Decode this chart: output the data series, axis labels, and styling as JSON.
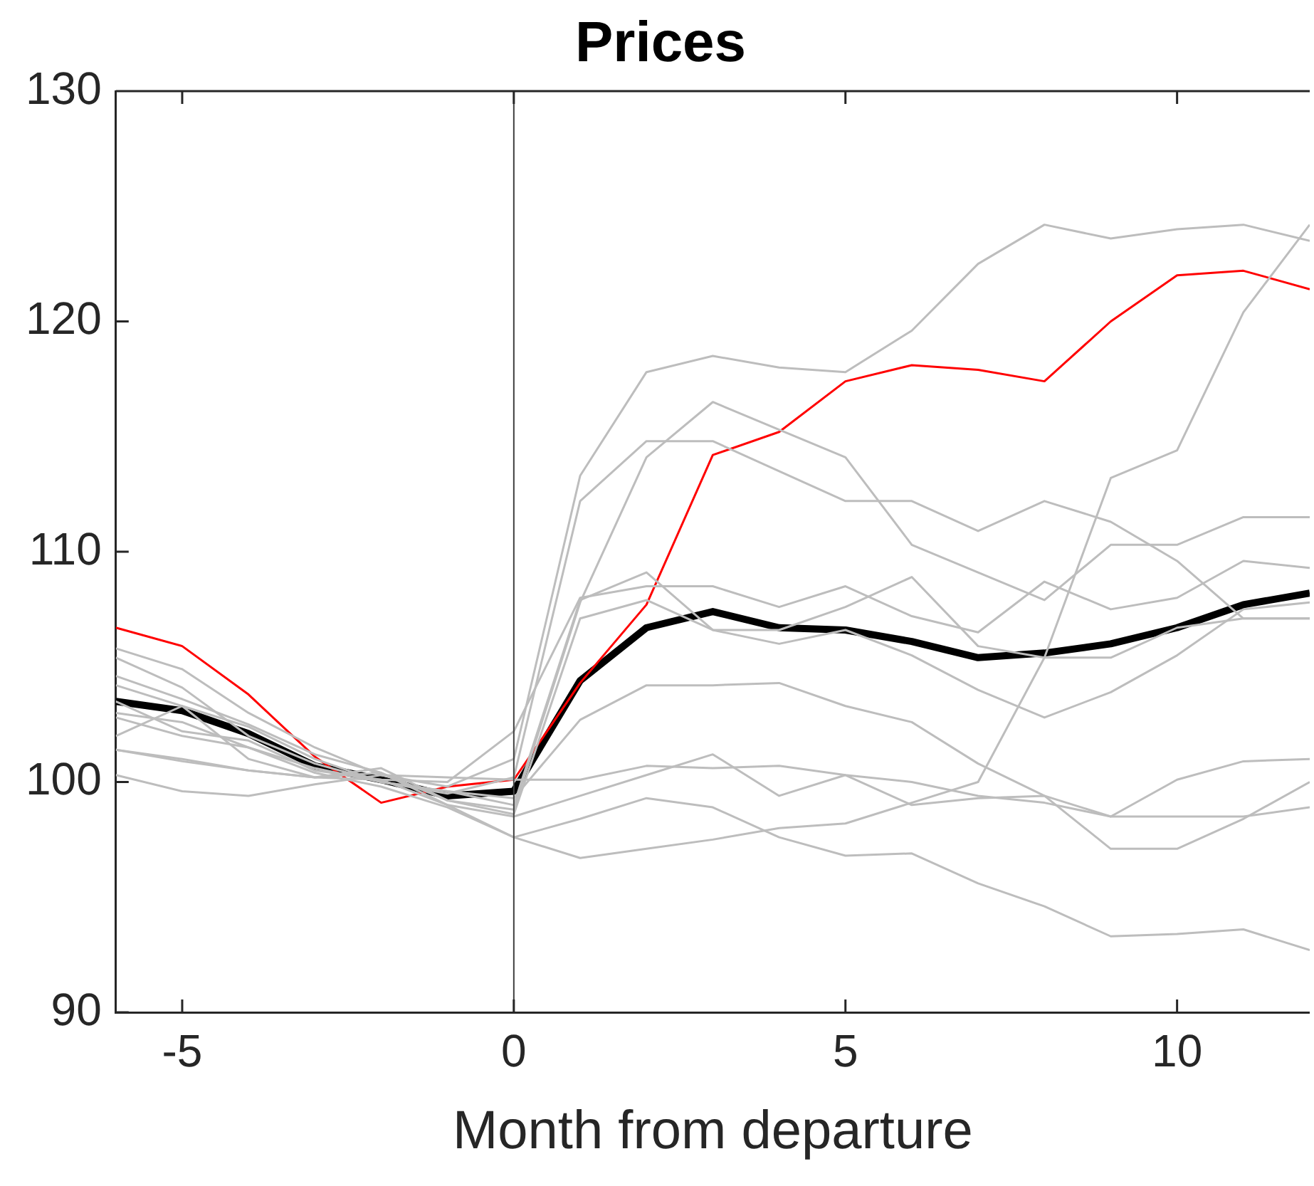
{
  "chart_data": {
    "type": "line",
    "title": "Prices",
    "xlabel": "Month from departure",
    "x": [
      -6,
      -5,
      -4,
      -3,
      -2,
      -1,
      0,
      1,
      2,
      3,
      4,
      5,
      6,
      7,
      8,
      9,
      10,
      11,
      12
    ],
    "xlim": [
      -6,
      12
    ],
    "xticks": [
      -5,
      0,
      5,
      10
    ],
    "ylim": [
      90,
      130
    ],
    "yticks": [
      90,
      100,
      110,
      120,
      130
    ],
    "grid": false,
    "legend": false,
    "marker": "none",
    "line_style": "solid",
    "ref_lines": [
      {
        "axis": "x",
        "value": 0,
        "color": "#404040"
      }
    ],
    "series": [
      {
        "color": "#bdbdbd",
        "values": [
          105.8,
          104.9,
          103.0,
          101.5,
          100.3,
          99.8,
          101.0,
          113.3,
          117.8,
          118.5,
          118.0,
          117.8,
          119.6,
          122.5,
          124.2,
          123.6,
          124.0,
          124.2,
          123.5
        ]
      },
      {
        "color": "#bdbdbd",
        "values": [
          105.4,
          104.1,
          102.0,
          100.8,
          100.0,
          99.5,
          100.2,
          112.2,
          114.8,
          114.8,
          113.5,
          112.2,
          112.2,
          110.9,
          112.2,
          111.3,
          109.6,
          107.1,
          107.1
        ]
      },
      {
        "color": "#bdbdbd",
        "values": [
          104.6,
          103.6,
          102.5,
          101.2,
          100.4,
          99.2,
          98.8,
          107.8,
          114.1,
          116.5,
          115.3,
          114.1,
          110.3,
          109.1,
          107.9,
          110.3,
          110.3,
          111.5,
          111.5
        ]
      },
      {
        "color": "#bdbdbd",
        "values": [
          101.4,
          101.0,
          100.5,
          100.2,
          100.4,
          99.0,
          97.6,
          96.7,
          97.1,
          97.5,
          98.0,
          98.2,
          99.1,
          100.0,
          105.4,
          113.2,
          114.4,
          120.4,
          124.2
        ]
      },
      {
        "color": "#bdbdbd",
        "values": [
          104.2,
          103.3,
          102.4,
          101.0,
          100.0,
          99.6,
          99.0,
          107.9,
          109.1,
          106.6,
          106.0,
          106.6,
          105.5,
          104.0,
          102.8,
          103.9,
          105.5,
          107.5,
          107.8
        ]
      },
      {
        "color": "#bdbdbd",
        "values": [
          102.0,
          103.3,
          101.0,
          100.2,
          100.6,
          99.2,
          98.6,
          107.1,
          107.9,
          106.6,
          106.6,
          107.6,
          108.9,
          105.9,
          105.4,
          105.4,
          106.7,
          107.1,
          107.1
        ]
      },
      {
        "color": "#bdbdbd",
        "values": [
          103.0,
          102.6,
          101.5,
          100.6,
          100.0,
          99.6,
          99.3,
          102.7,
          104.2,
          104.2,
          104.3,
          103.3,
          102.6,
          100.8,
          99.4,
          98.5,
          98.5,
          98.5,
          98.9
        ]
      },
      {
        "color": "#bdbdbd",
        "values": [
          100.3,
          99.6,
          99.4,
          99.9,
          100.3,
          100.2,
          100.1,
          100.1,
          100.7,
          100.6,
          100.7,
          100.3,
          100.0,
          99.4,
          99.1,
          98.5,
          100.1,
          100.9,
          101.0
        ]
      },
      {
        "color": "#bdbdbd",
        "values": [
          101.4,
          100.9,
          100.5,
          100.2,
          100.1,
          99.0,
          98.5,
          99.4,
          100.3,
          101.2,
          99.4,
          100.3,
          99.0,
          99.3,
          99.4,
          97.1,
          97.1,
          98.4,
          100.0
        ]
      },
      {
        "color": "#bdbdbd",
        "values": [
          102.8,
          102.0,
          101.5,
          100.4,
          99.8,
          98.9,
          97.6,
          98.4,
          99.3,
          98.9,
          97.6,
          96.8,
          96.9,
          95.6,
          94.6,
          93.3,
          93.4,
          93.6,
          92.7
        ]
      },
      {
        "color": "#bdbdbd",
        "values": [
          103.5,
          102.2,
          101.8,
          100.5,
          100.1,
          100.0,
          102.2,
          108.0,
          108.5,
          108.5,
          107.6,
          108.5,
          107.2,
          106.5,
          108.7,
          107.5,
          108.0,
          109.6,
          109.3
        ]
      },
      {
        "color": "#ff0000",
        "values": [
          106.7,
          105.9,
          103.8,
          101.1,
          99.1,
          99.8,
          100.1,
          104.3,
          107.7,
          114.2,
          115.2,
          117.4,
          118.1,
          117.9,
          117.4,
          120.0,
          122.0,
          122.2,
          121.4
        ]
      },
      {
        "color": "#000000",
        "values": [
          103.5,
          103.1,
          102.1,
          100.7,
          100.1,
          99.4,
          99.6,
          104.4,
          106.7,
          107.4,
          106.7,
          106.6,
          106.1,
          105.4,
          105.6,
          106.0,
          106.7,
          107.7,
          108.2
        ]
      }
    ]
  }
}
